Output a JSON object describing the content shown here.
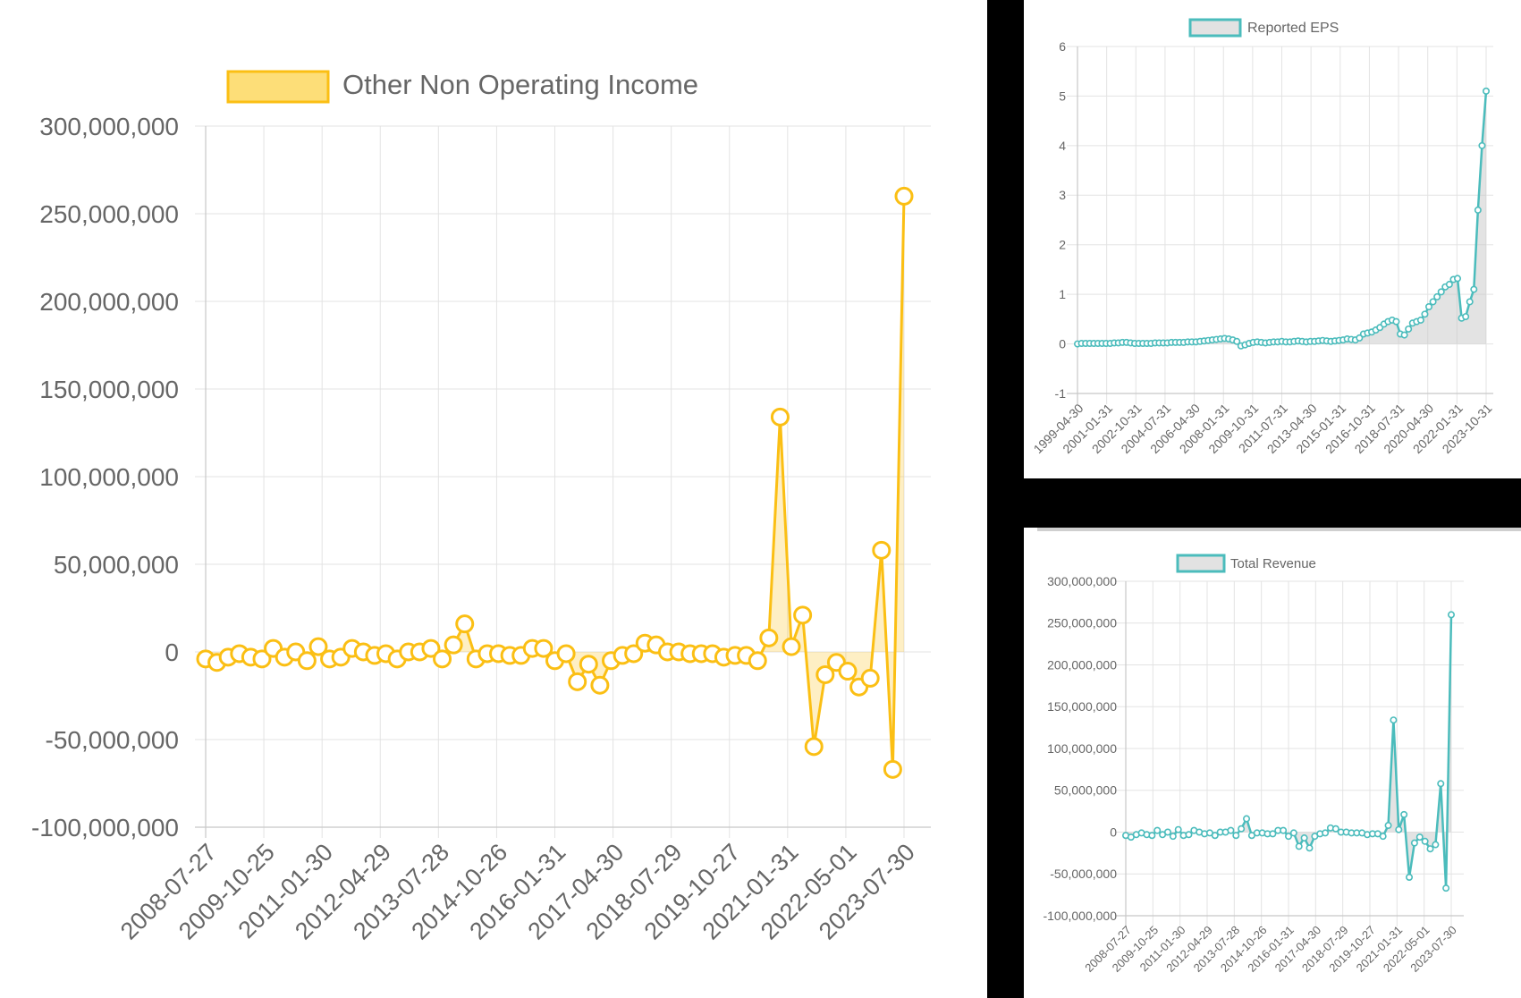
{
  "charts": {
    "main": {
      "legend_label": "Other Non Operating Income",
      "color": "#fbbf14",
      "fill": "rgba(251,191,20,0.25)",
      "legend_fill": "#fdde78"
    },
    "eps": {
      "legend_label": "Reported EPS",
      "color": "#4bbcbc",
      "fill": "rgba(200,200,200,0.5)",
      "legend_fill": "#e2e2e2"
    },
    "rev": {
      "legend_label": "Total Revenue",
      "color": "#4bbcbc",
      "fill": "rgba(200,200,200,0.5)",
      "legend_fill": "#e2e2e2"
    }
  },
  "chart_data": [
    {
      "id": "main",
      "type": "line",
      "ylim": [
        -100000000,
        300000000
      ],
      "yticks": [
        300000000,
        250000000,
        200000000,
        150000000,
        100000000,
        50000000,
        0,
        -50000000,
        -100000000
      ],
      "ytick_labels": [
        "300,000,000",
        "250,000,000",
        "200,000,000",
        "150,000,000",
        "100,000,000",
        "50,000,000",
        "0",
        "-50,000,000",
        "-100,000,000"
      ],
      "xtick_labels": [
        "2008-07-27",
        "2009-10-25",
        "2011-01-30",
        "2012-04-29",
        "2013-07-28",
        "2014-10-26",
        "2016-01-31",
        "2017-04-30",
        "2018-07-29",
        "2019-10-27",
        "2021-01-31",
        "2022-05-01",
        "2023-07-30"
      ],
      "grid": true,
      "legend": "top-center",
      "series": [
        {
          "name": "Other Non Operating Income",
          "values": [
            -4000000,
            -6000000,
            -3000000,
            -1000000,
            -3000000,
            -4000000,
            2000000,
            -3000000,
            0,
            -5000000,
            3000000,
            -4000000,
            -3000000,
            2000000,
            0,
            -2000000,
            -1000000,
            -4000000,
            0,
            0,
            2000000,
            -4000000,
            4000000,
            16000000,
            -4000000,
            -1000000,
            -1000000,
            -2000000,
            -2000000,
            2000000,
            2000000,
            -5000000,
            -1000000,
            -17000000,
            -7000000,
            -19000000,
            -5000000,
            -2000000,
            -1000000,
            5000000,
            4000000,
            0,
            0,
            -1000000,
            -1000000,
            -1000000,
            -3000000,
            -2000000,
            -2000000,
            -5000000,
            8000000,
            134000000,
            3000000,
            21000000,
            -54000000,
            -13000000,
            -6000000,
            -11000000,
            -20000000,
            -15000000,
            58000000,
            -67000000,
            260000000
          ]
        }
      ]
    },
    {
      "id": "eps",
      "type": "line",
      "ylim": [
        -1,
        6
      ],
      "yticks": [
        6,
        5,
        4,
        3,
        2,
        1,
        0,
        -1
      ],
      "ytick_labels": [
        "6",
        "5",
        "4",
        "3",
        "2",
        "1",
        "0",
        "-1"
      ],
      "xtick_labels": [
        "1999-04-30",
        "2001-01-31",
        "2002-10-31",
        "2004-07-31",
        "2006-04-30",
        "2008-01-31",
        "2009-10-31",
        "2011-07-31",
        "2013-04-30",
        "2015-01-31",
        "2016-10-31",
        "2018-07-31",
        "2020-04-30",
        "2022-01-31",
        "2023-10-31"
      ],
      "grid": true,
      "legend": "top-center",
      "series": [
        {
          "name": "Reported EPS",
          "values": [
            0,
            0.01,
            0.01,
            0.01,
            0.01,
            0.01,
            0.01,
            0.01,
            0.01,
            0.02,
            0.02,
            0.03,
            0.03,
            0.02,
            0.01,
            0.01,
            0.01,
            0.01,
            0.01,
            0.02,
            0.02,
            0.02,
            0.02,
            0.03,
            0.03,
            0.03,
            0.03,
            0.04,
            0.04,
            0.04,
            0.05,
            0.06,
            0.07,
            0.08,
            0.09,
            0.1,
            0.11,
            0.1,
            0.08,
            0.05,
            -0.04,
            -0.02,
            0.01,
            0.03,
            0.04,
            0.03,
            0.02,
            0.03,
            0.04,
            0.04,
            0.05,
            0.04,
            0.04,
            0.05,
            0.06,
            0.05,
            0.04,
            0.05,
            0.05,
            0.06,
            0.07,
            0.06,
            0.05,
            0.06,
            0.07,
            0.08,
            0.1,
            0.09,
            0.08,
            0.12,
            0.2,
            0.22,
            0.24,
            0.28,
            0.33,
            0.4,
            0.45,
            0.48,
            0.45,
            0.2,
            0.18,
            0.3,
            0.42,
            0.45,
            0.48,
            0.6,
            0.75,
            0.85,
            0.95,
            1.05,
            1.15,
            1.2,
            1.3,
            1.32,
            0.52,
            0.55,
            0.85,
            1.1,
            2.7,
            4.0,
            5.1
          ]
        }
      ]
    },
    {
      "id": "rev",
      "type": "line",
      "ylim": [
        -100000000,
        300000000
      ],
      "yticks": [
        300000000,
        250000000,
        200000000,
        150000000,
        100000000,
        50000000,
        0,
        -50000000,
        -100000000
      ],
      "ytick_labels": [
        "300,000,000",
        "250,000,000",
        "200,000,000",
        "150,000,000",
        "100,000,000",
        "50,000,000",
        "0",
        "-50,000,000",
        "-100,000,000"
      ],
      "xtick_labels": [
        "2008-07-27",
        "2009-10-25",
        "2011-01-30",
        "2012-04-29",
        "2013-07-28",
        "2014-10-26",
        "2016-01-31",
        "2017-04-30",
        "2018-07-29",
        "2019-10-27",
        "2021-01-31",
        "2022-05-01",
        "2023-07-30"
      ],
      "grid": true,
      "legend": "top-center",
      "series": [
        {
          "name": "Total Revenue",
          "values": [
            -4000000,
            -6000000,
            -3000000,
            -1000000,
            -3000000,
            -4000000,
            2000000,
            -3000000,
            0,
            -5000000,
            3000000,
            -4000000,
            -3000000,
            2000000,
            0,
            -2000000,
            -1000000,
            -4000000,
            0,
            0,
            2000000,
            -4000000,
            4000000,
            16000000,
            -4000000,
            -1000000,
            -1000000,
            -2000000,
            -2000000,
            2000000,
            2000000,
            -5000000,
            -1000000,
            -17000000,
            -7000000,
            -19000000,
            -5000000,
            -2000000,
            -1000000,
            5000000,
            4000000,
            0,
            0,
            -1000000,
            -1000000,
            -1000000,
            -3000000,
            -2000000,
            -2000000,
            -5000000,
            8000000,
            134000000,
            3000000,
            21000000,
            -54000000,
            -13000000,
            -6000000,
            -11000000,
            -20000000,
            -15000000,
            58000000,
            -67000000,
            260000000
          ]
        }
      ]
    }
  ]
}
